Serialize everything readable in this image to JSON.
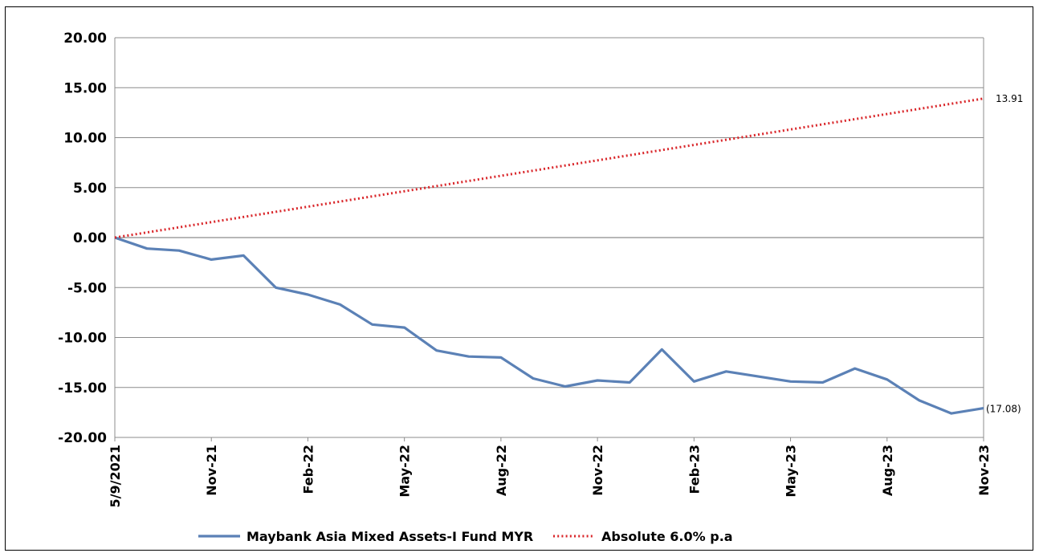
{
  "chart_data": {
    "type": "line",
    "ylim": [
      -20,
      20
    ],
    "y_ticks": [
      "20.00",
      "15.00",
      "10.00",
      "5.00",
      "0.00",
      "-5.00",
      "-10.00",
      "-15.00",
      "-20.00"
    ],
    "x_ticks": [
      "5/9/2021",
      "Nov-21",
      "Feb-22",
      "May-22",
      "Aug-22",
      "Nov-22",
      "Feb-23",
      "May-23",
      "Aug-23",
      "Nov-23"
    ],
    "grid": true,
    "legend_position": "bottom",
    "series": [
      {
        "name": "Maybank Asia Mixed Assets-I Fund MYR",
        "color": "#5b81b6",
        "style": "solid",
        "values": [
          0.0,
          -1.1,
          -1.3,
          -2.2,
          -1.8,
          -5.0,
          -5.7,
          -6.7,
          -8.7,
          -9.0,
          -11.3,
          -11.9,
          -12.0,
          -14.1,
          -14.9,
          -14.3,
          -14.5,
          -11.2,
          -14.4,
          -13.4,
          -13.9,
          -14.4,
          -14.5,
          -13.1,
          -14.2,
          -16.3,
          -17.6,
          -17.08
        ],
        "end_label": "(17.08)"
      },
      {
        "name": "Absolute 6.0% p.a",
        "color": "#d9262a",
        "style": "dotted",
        "values": [
          0.0,
          13.91
        ],
        "end_label": "13.91"
      }
    ]
  }
}
